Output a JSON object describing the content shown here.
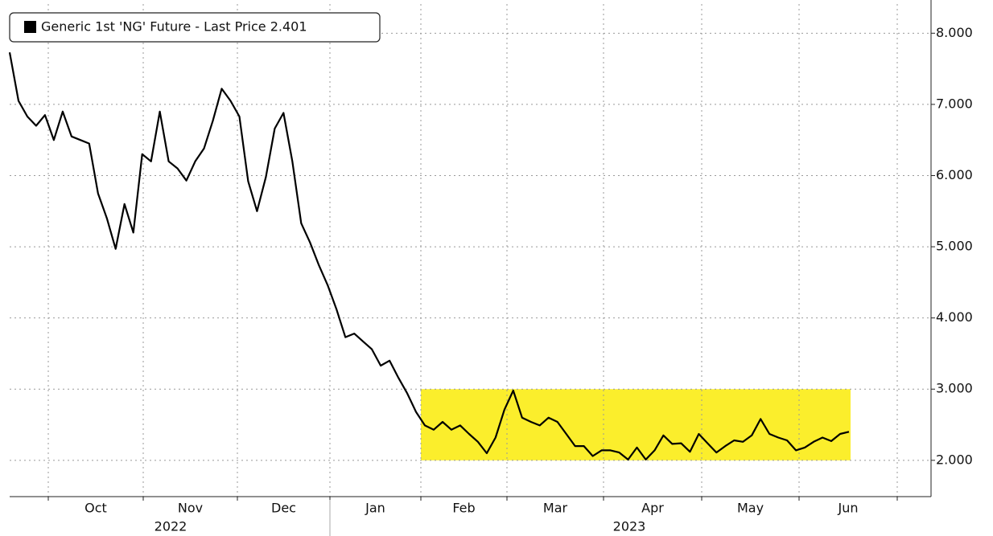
{
  "chart_data": {
    "type": "line",
    "series": [
      {
        "name": "Generic 1st 'NG' Future - Last Price 2.401",
        "color": "#000000",
        "values": [
          7.73,
          7.05,
          6.83,
          6.7,
          6.85,
          6.5,
          6.9,
          6.55,
          6.5,
          6.45,
          5.75,
          5.4,
          4.97,
          5.6,
          5.2,
          6.3,
          6.2,
          6.9,
          6.2,
          6.1,
          5.93,
          6.2,
          6.38,
          6.77,
          7.22,
          7.05,
          6.83,
          5.92,
          5.5,
          5.98,
          6.66,
          6.88,
          6.2,
          5.33,
          5.06,
          4.74,
          4.46,
          4.12,
          3.73,
          3.78,
          3.67,
          3.56,
          3.33,
          3.4,
          3.16,
          2.94,
          2.68,
          2.49,
          2.43,
          2.54,
          2.43,
          2.49,
          2.37,
          2.26,
          2.1,
          2.32,
          2.71,
          2.98,
          2.6,
          2.54,
          2.49,
          2.6,
          2.54,
          2.37,
          2.2,
          2.2,
          2.06,
          2.14,
          2.14,
          2.11,
          2.01,
          2.18,
          2.01,
          2.14,
          2.35,
          2.23,
          2.24,
          2.12,
          2.37,
          2.24,
          2.11,
          2.2,
          2.28,
          2.26,
          2.35,
          2.58,
          2.37,
          2.32,
          2.28,
          2.14,
          2.18,
          2.26,
          2.32,
          2.27,
          2.37,
          2.401
        ]
      }
    ],
    "months": [
      "Oct",
      "Nov",
      "Dec",
      "Jan",
      "Feb",
      "Mar",
      "Apr",
      "May",
      "Jun"
    ],
    "years": [
      "2022",
      "2023"
    ],
    "ylim": [
      1.49,
      8.41
    ],
    "yticks": [
      {
        "value": 2,
        "label": "2.000"
      },
      {
        "value": 3,
        "label": "3.000"
      },
      {
        "value": 4,
        "label": "4.000"
      },
      {
        "value": 5,
        "label": "5.000"
      },
      {
        "value": 6,
        "label": "6.000"
      },
      {
        "value": 7,
        "label": "7.000"
      },
      {
        "value": 8,
        "label": "8.000"
      }
    ],
    "highlight": {
      "range": [
        2,
        3
      ],
      "color": "#fbee2c"
    },
    "grid": true
  }
}
